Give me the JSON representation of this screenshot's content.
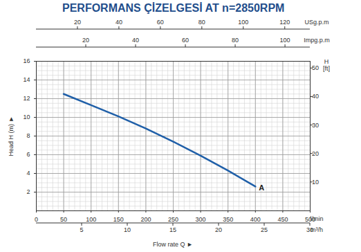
{
  "chart_data": {
    "type": "line",
    "title": "PERFORMANS ÇİZELGESİ  AT n=2850RPM",
    "xlabel": "l/min",
    "ylabel": "Head H (m) ►",
    "caption": "Flow rate Q ►",
    "x": [
      50,
      100,
      150,
      200,
      250,
      300,
      350,
      400
    ],
    "series": [
      {
        "name": "A",
        "color": "#1f5fa8",
        "values": [
          12.5,
          11.3,
          10.1,
          8.8,
          7.4,
          5.9,
          4.3,
          2.6
        ]
      }
    ],
    "xlim": [
      0,
      500
    ],
    "xticks": [
      0,
      50,
      100,
      150,
      200,
      250,
      300,
      350,
      400,
      450,
      500
    ],
    "ylim": [
      0,
      16
    ],
    "yticks": [
      2,
      4,
      6,
      8,
      10,
      12,
      14,
      16
    ],
    "y2label": "H [ft]",
    "y2lim": [
      0,
      52.49
    ],
    "y2ticks": [
      10,
      20,
      30,
      40,
      50
    ],
    "top_axes": [
      {
        "label": "USg.p.m",
        "lim": [
          0,
          132.09
        ],
        "ticks": [
          20,
          40,
          60,
          80,
          100,
          120
        ]
      },
      {
        "label": "Impg.p.m",
        "lim": [
          0,
          109.98
        ],
        "ticks": [
          20,
          40,
          60,
          80,
          100
        ]
      }
    ],
    "bottom_axes": [
      {
        "label": "m³/h",
        "lim": [
          0,
          30
        ],
        "ticks": [
          5,
          10,
          15,
          20,
          25,
          30
        ]
      }
    ],
    "grid": true
  }
}
